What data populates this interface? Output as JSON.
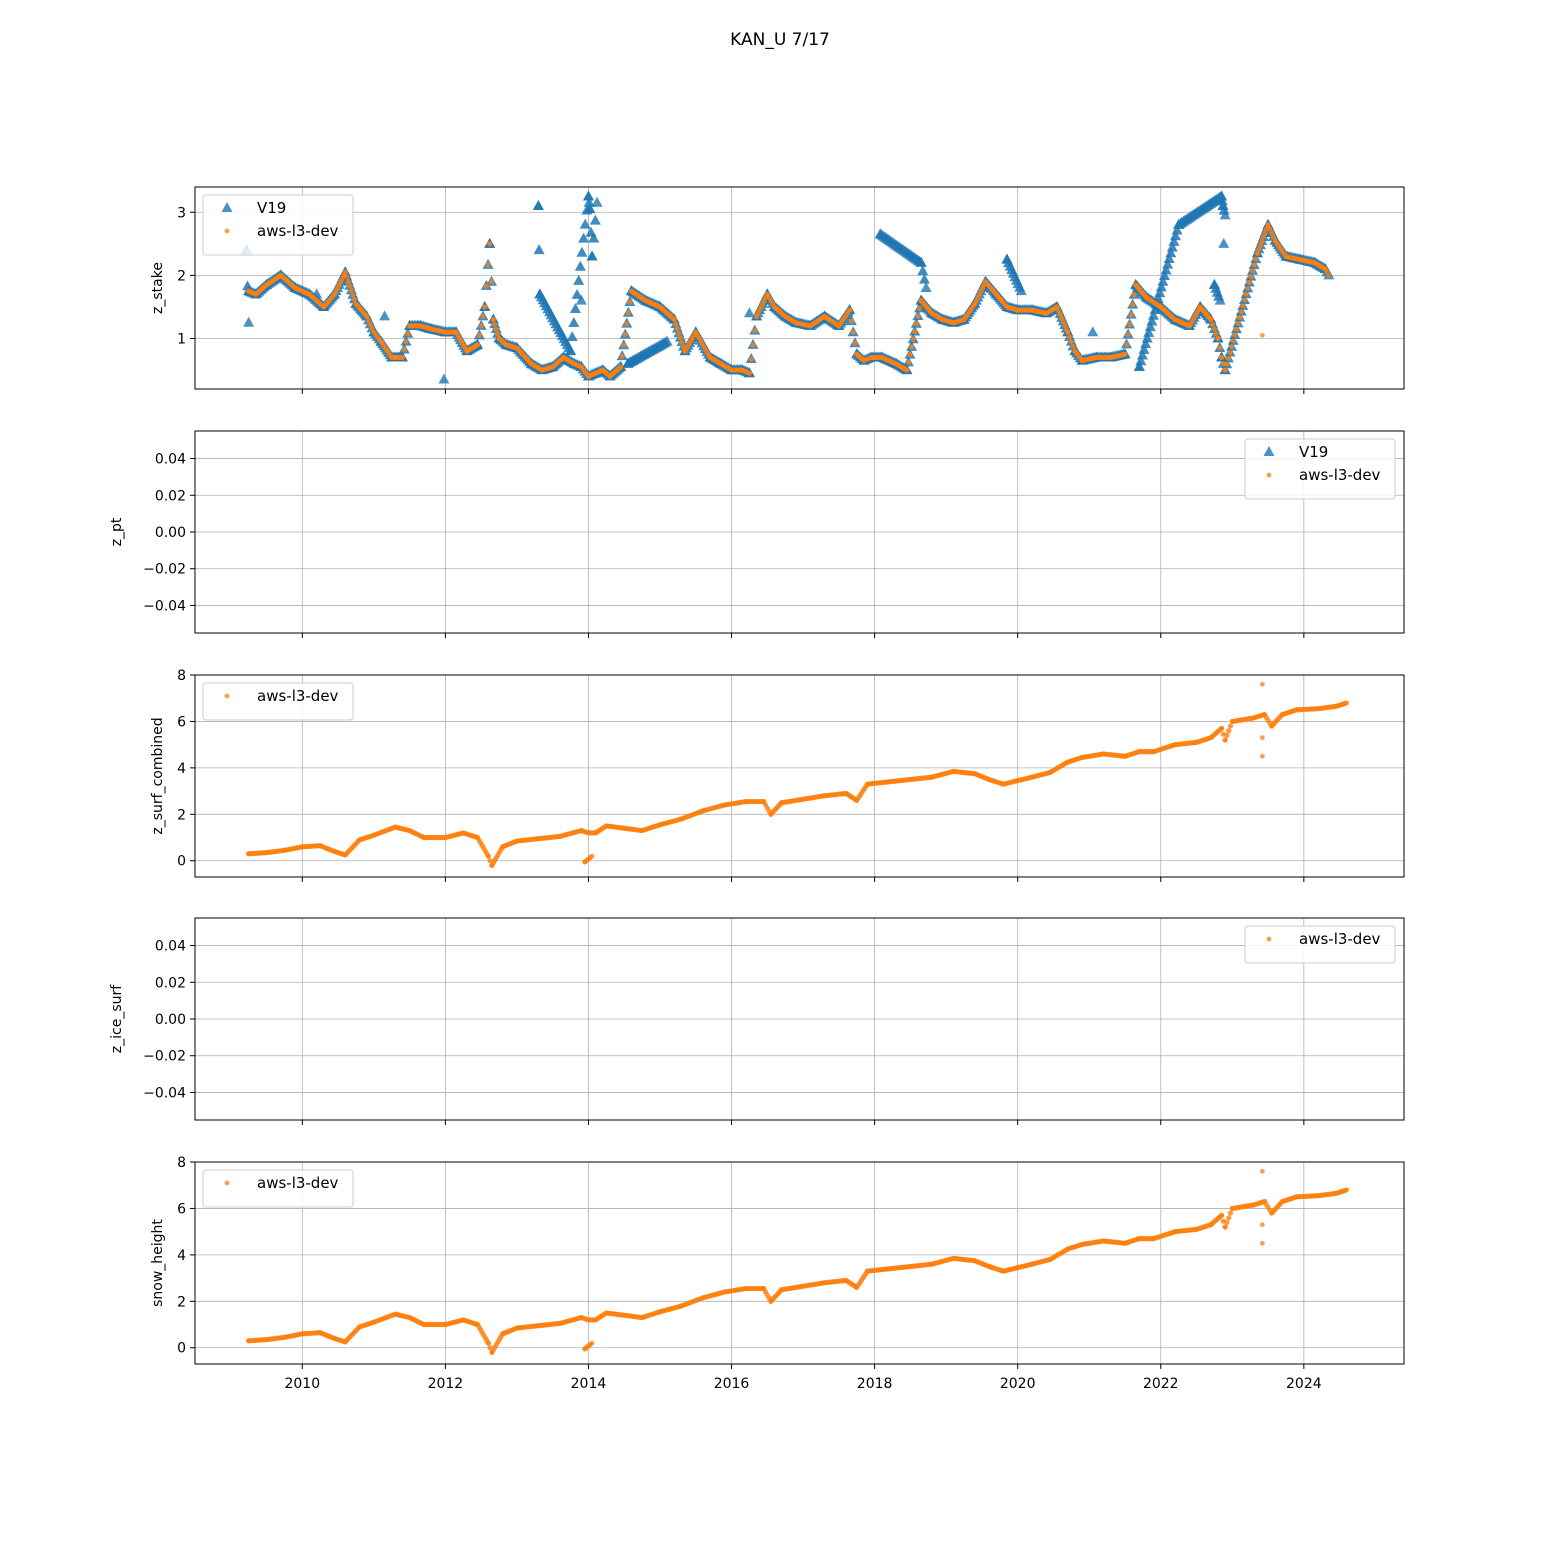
{
  "title": "KAN_U 7/17",
  "colors": {
    "v19": "#1f77b4",
    "aws": "#ff7f0e",
    "grid": "#b0b0b0"
  },
  "chart_data": [
    {
      "type": "scatter",
      "ylabel": "z_stake",
      "xlim": [
        2008.5,
        2025.4
      ],
      "ylim": [
        0.2,
        3.4
      ],
      "yticks": [
        1,
        2,
        3
      ],
      "grid": true,
      "legend_position": "upper-left",
      "series": [
        {
          "name": "V19",
          "marker": "triangle",
          "x": [
            2009.25,
            2009.35,
            2009.5,
            2009.7,
            2009.9,
            2010.1,
            2010.3,
            2010.45,
            2010.6,
            2010.75,
            2010.9,
            2011.0,
            2011.1,
            2011.25,
            2011.4,
            2011.5,
            2011.65,
            2011.8,
            2012.0,
            2012.15,
            2012.3,
            2012.45,
            2012.55,
            2012.62,
            2012.67,
            2012.75,
            2012.85,
            2013.0,
            2013.2,
            2013.35,
            2013.5,
            2013.65,
            2013.8,
            2013.9,
            2014.0,
            2014.1,
            2014.2,
            2014.3,
            2014.45,
            2014.6,
            2014.8,
            2015.0,
            2015.2,
            2015.35,
            2015.5,
            2015.7,
            2015.85,
            2016.0,
            2016.15,
            2016.25,
            2016.35,
            2016.5,
            2016.6,
            2016.75,
            2016.9,
            2017.1,
            2017.3,
            2017.5,
            2017.65,
            2017.75,
            2017.85,
            2017.95,
            2018.1,
            2018.3,
            2018.45,
            2018.65,
            2018.8,
            2018.95,
            2019.1,
            2019.25,
            2019.4,
            2019.55,
            2019.7,
            2019.85,
            2020.0,
            2020.2,
            2020.4,
            2020.55,
            2020.7,
            2020.8,
            2020.9,
            2021.1,
            2021.3,
            2021.5,
            2021.65,
            2021.8,
            2022.0,
            2022.2,
            2022.4,
            2022.55,
            2022.7,
            2022.8,
            2022.85,
            2022.9,
            2023.35,
            2023.5,
            2023.6,
            2023.75,
            2023.95,
            2024.15,
            2024.3,
            2024.35,
            2009.22,
            2009.25,
            2010.2,
            2011.15,
            2011.98,
            2013.3,
            2013.32,
            2013.75,
            2014.0,
            2014.02,
            2014.05,
            2014.12,
            2013.9,
            2014.55,
            2015.1,
            2016.25,
            2018.08,
            2018.65,
            2018.72,
            2019.85,
            2020.05,
            2021.05,
            2021.7,
            2022.25,
            2022.85,
            2022.87,
            2022.9,
            2022.88,
            2022.75,
            2022.83
          ],
          "y": [
            1.75,
            1.7,
            1.85,
            2.0,
            1.8,
            1.7,
            1.5,
            1.7,
            2.05,
            1.55,
            1.35,
            1.1,
            0.95,
            0.7,
            0.7,
            1.2,
            1.2,
            1.15,
            1.1,
            1.1,
            0.8,
            0.9,
            1.5,
            2.5,
            1.3,
            1.0,
            0.9,
            0.85,
            0.6,
            0.5,
            0.55,
            0.7,
            0.6,
            0.55,
            0.4,
            0.45,
            0.5,
            0.4,
            0.55,
            1.75,
            1.6,
            1.5,
            1.3,
            0.8,
            1.1,
            0.7,
            0.6,
            0.5,
            0.5,
            0.45,
            1.35,
            1.7,
            1.5,
            1.35,
            1.25,
            1.2,
            1.35,
            1.2,
            1.45,
            0.75,
            0.65,
            0.7,
            0.7,
            0.6,
            0.5,
            1.6,
            1.4,
            1.3,
            1.25,
            1.3,
            1.55,
            1.9,
            1.7,
            1.5,
            1.45,
            1.45,
            1.4,
            1.5,
            1.1,
            0.8,
            0.65,
            0.7,
            0.7,
            0.75,
            1.85,
            1.65,
            1.5,
            1.3,
            1.2,
            1.5,
            1.3,
            1.0,
            0.7,
            0.5,
            2.35,
            2.8,
            2.55,
            2.3,
            2.25,
            2.2,
            2.1,
            2.0,
            2.4,
            1.25,
            1.7,
            1.35,
            0.35,
            3.1,
            1.7,
            0.8,
            3.25,
            3.05,
            2.3,
            3.15,
            1.6,
            0.6,
            0.95,
            1.4,
            2.65,
            2.2,
            1.8,
            2.25,
            1.75,
            1.1,
            0.55,
            2.8,
            3.25,
            3.1,
            2.95,
            2.5,
            1.85,
            1.6
          ]
        },
        {
          "name": "aws-l3-dev",
          "marker": "dot",
          "x": [
            2009.25,
            2009.35,
            2009.5,
            2009.7,
            2009.9,
            2010.1,
            2010.3,
            2010.45,
            2010.6,
            2010.75,
            2010.9,
            2011.0,
            2011.1,
            2011.25,
            2011.4,
            2011.5,
            2011.65,
            2011.8,
            2012.0,
            2012.15,
            2012.3,
            2012.45,
            2012.55,
            2012.62,
            2012.67,
            2012.75,
            2012.85,
            2013.0,
            2013.2,
            2013.35,
            2013.5,
            2013.65,
            2013.8,
            2013.9,
            2014.0,
            2014.1,
            2014.2,
            2014.3,
            2014.45,
            2014.6,
            2014.8,
            2015.0,
            2015.2,
            2015.35,
            2015.5,
            2015.7,
            2015.85,
            2016.0,
            2016.15,
            2016.25,
            2016.35,
            2016.5,
            2016.6,
            2016.75,
            2016.9,
            2017.1,
            2017.3,
            2017.5,
            2017.65,
            2017.75,
            2017.85,
            2017.95,
            2018.1,
            2018.3,
            2018.45,
            2018.65,
            2018.8,
            2018.95,
            2019.1,
            2019.25,
            2019.4,
            2019.55,
            2019.7,
            2019.85,
            2020.0,
            2020.2,
            2020.4,
            2020.55,
            2020.7,
            2020.8,
            2020.9,
            2021.1,
            2021.3,
            2021.5,
            2021.65,
            2021.8,
            2022.0,
            2022.2,
            2022.4,
            2022.55,
            2022.7,
            2022.8,
            2022.85,
            2022.9,
            2023.35,
            2023.5,
            2023.6,
            2023.75,
            2023.95,
            2024.15,
            2024.3,
            2024.35,
            2023.42
          ],
          "y": [
            1.75,
            1.7,
            1.85,
            2.0,
            1.8,
            1.7,
            1.5,
            1.7,
            2.05,
            1.55,
            1.35,
            1.1,
            0.95,
            0.7,
            0.7,
            1.2,
            1.2,
            1.15,
            1.1,
            1.1,
            0.8,
            0.9,
            1.5,
            2.5,
            1.3,
            1.0,
            0.9,
            0.85,
            0.6,
            0.5,
            0.55,
            0.7,
            0.6,
            0.55,
            0.4,
            0.45,
            0.5,
            0.4,
            0.55,
            1.75,
            1.6,
            1.5,
            1.3,
            0.8,
            1.1,
            0.7,
            0.6,
            0.5,
            0.5,
            0.45,
            1.35,
            1.7,
            1.5,
            1.35,
            1.25,
            1.2,
            1.35,
            1.2,
            1.45,
            0.75,
            0.65,
            0.7,
            0.7,
            0.6,
            0.5,
            1.6,
            1.4,
            1.3,
            1.25,
            1.3,
            1.55,
            1.9,
            1.7,
            1.5,
            1.45,
            1.45,
            1.4,
            1.5,
            1.1,
            0.8,
            0.65,
            0.7,
            0.7,
            0.75,
            1.85,
            1.65,
            1.5,
            1.3,
            1.2,
            1.5,
            1.3,
            1.0,
            0.7,
            0.5,
            2.35,
            2.8,
            2.55,
            2.3,
            2.25,
            2.2,
            2.1,
            2.0,
            1.05
          ]
        }
      ]
    },
    {
      "type": "scatter",
      "ylabel": "z_pt",
      "xlim": [
        2008.5,
        2025.4
      ],
      "ylim": [
        -0.055,
        0.055
      ],
      "yticks": [
        -0.04,
        -0.02,
        0.0,
        0.02,
        0.04
      ],
      "ytick_labels": [
        "−0.04",
        "−0.02",
        "0.00",
        "0.02",
        "0.04"
      ],
      "grid": true,
      "legend_position": "upper-right",
      "series": [
        {
          "name": "V19",
          "marker": "triangle",
          "x": [],
          "y": []
        },
        {
          "name": "aws-l3-dev",
          "marker": "dot",
          "x": [],
          "y": []
        }
      ]
    },
    {
      "type": "scatter",
      "ylabel": "z_surf_combined",
      "xlim": [
        2008.5,
        2025.4
      ],
      "ylim": [
        -0.7,
        8.0
      ],
      "yticks": [
        0,
        2,
        4,
        6,
        8
      ],
      "grid": true,
      "legend_position": "upper-left",
      "series": [
        {
          "name": "aws-l3-dev",
          "marker": "dot",
          "x": [
            2009.25,
            2009.5,
            2009.75,
            2010.0,
            2010.25,
            2010.45,
            2010.6,
            2010.8,
            2011.0,
            2011.3,
            2011.5,
            2011.7,
            2012.0,
            2012.25,
            2012.45,
            2012.6,
            2012.65,
            2012.8,
            2013.0,
            2013.3,
            2013.6,
            2013.9,
            2014.0,
            2014.1,
            2014.25,
            2014.5,
            2014.75,
            2015.0,
            2015.3,
            2015.6,
            2015.9,
            2016.2,
            2016.45,
            2016.55,
            2016.7,
            2017.0,
            2017.3,
            2017.6,
            2017.75,
            2017.9,
            2018.2,
            2018.5,
            2018.8,
            2019.1,
            2019.4,
            2019.6,
            2019.8,
            2020.0,
            2020.2,
            2020.45,
            2020.7,
            2020.9,
            2021.2,
            2021.5,
            2021.7,
            2021.9,
            2022.2,
            2022.5,
            2022.7,
            2022.85,
            2022.9,
            2023.0,
            2023.3,
            2023.45,
            2023.55,
            2023.7,
            2023.9,
            2024.2,
            2024.45,
            2024.6,
            2023.42,
            2023.42,
            2023.42,
            2013.95,
            2014.05
          ],
          "y": [
            0.3,
            0.35,
            0.45,
            0.6,
            0.65,
            0.4,
            0.25,
            0.9,
            1.1,
            1.45,
            1.3,
            1.0,
            1.0,
            1.2,
            1.0,
            0.2,
            -0.2,
            0.6,
            0.85,
            0.95,
            1.05,
            1.3,
            1.2,
            1.2,
            1.5,
            1.4,
            1.3,
            1.55,
            1.8,
            2.15,
            2.4,
            2.55,
            2.55,
            2.0,
            2.5,
            2.65,
            2.8,
            2.9,
            2.6,
            3.3,
            3.4,
            3.5,
            3.6,
            3.85,
            3.75,
            3.5,
            3.3,
            3.45,
            3.6,
            3.8,
            4.25,
            4.45,
            4.6,
            4.5,
            4.7,
            4.7,
            5.0,
            5.1,
            5.3,
            5.7,
            5.2,
            6.0,
            6.15,
            6.3,
            5.8,
            6.3,
            6.5,
            6.55,
            6.65,
            6.8,
            7.6,
            4.5,
            5.3,
            -0.05,
            0.2
          ]
        }
      ]
    },
    {
      "type": "scatter",
      "ylabel": "z_ice_surf",
      "xlim": [
        2008.5,
        2025.4
      ],
      "ylim": [
        -0.055,
        0.055
      ],
      "yticks": [
        -0.04,
        -0.02,
        0.0,
        0.02,
        0.04
      ],
      "ytick_labels": [
        "−0.04",
        "−0.02",
        "0.00",
        "0.02",
        "0.04"
      ],
      "grid": true,
      "legend_position": "upper-right",
      "series": [
        {
          "name": "aws-l3-dev",
          "marker": "dot",
          "x": [],
          "y": []
        }
      ]
    },
    {
      "type": "scatter",
      "ylabel": "snow_height",
      "xlim": [
        2008.5,
        2025.4
      ],
      "ylim": [
        -0.7,
        8.0
      ],
      "yticks": [
        0,
        2,
        4,
        6,
        8
      ],
      "xticks": [
        2010,
        2012,
        2014,
        2016,
        2018,
        2020,
        2022,
        2024
      ],
      "grid": true,
      "legend_position": "upper-left",
      "series": [
        {
          "name": "aws-l3-dev",
          "marker": "dot",
          "x": [
            2009.25,
            2009.5,
            2009.75,
            2010.0,
            2010.25,
            2010.45,
            2010.6,
            2010.8,
            2011.0,
            2011.3,
            2011.5,
            2011.7,
            2012.0,
            2012.25,
            2012.45,
            2012.6,
            2012.65,
            2012.8,
            2013.0,
            2013.3,
            2013.6,
            2013.9,
            2014.0,
            2014.1,
            2014.25,
            2014.5,
            2014.75,
            2015.0,
            2015.3,
            2015.6,
            2015.9,
            2016.2,
            2016.45,
            2016.55,
            2016.7,
            2017.0,
            2017.3,
            2017.6,
            2017.75,
            2017.9,
            2018.2,
            2018.5,
            2018.8,
            2019.1,
            2019.4,
            2019.6,
            2019.8,
            2020.0,
            2020.2,
            2020.45,
            2020.7,
            2020.9,
            2021.2,
            2021.5,
            2021.7,
            2021.9,
            2022.2,
            2022.5,
            2022.7,
            2022.85,
            2022.9,
            2023.0,
            2023.3,
            2023.45,
            2023.55,
            2023.7,
            2023.9,
            2024.2,
            2024.45,
            2024.6,
            2023.42,
            2023.42,
            2023.42,
            2013.95,
            2014.05
          ],
          "y": [
            0.3,
            0.35,
            0.45,
            0.6,
            0.65,
            0.4,
            0.25,
            0.9,
            1.1,
            1.45,
            1.3,
            1.0,
            1.0,
            1.2,
            1.0,
            0.2,
            -0.2,
            0.6,
            0.85,
            0.95,
            1.05,
            1.3,
            1.2,
            1.2,
            1.5,
            1.4,
            1.3,
            1.55,
            1.8,
            2.15,
            2.4,
            2.55,
            2.55,
            2.0,
            2.5,
            2.65,
            2.8,
            2.9,
            2.6,
            3.3,
            3.4,
            3.5,
            3.6,
            3.85,
            3.75,
            3.5,
            3.3,
            3.45,
            3.6,
            3.8,
            4.25,
            4.45,
            4.6,
            4.5,
            4.7,
            4.7,
            5.0,
            5.1,
            5.3,
            5.7,
            5.2,
            6.0,
            6.15,
            6.3,
            5.8,
            6.3,
            6.5,
            6.55,
            6.65,
            6.8,
            7.6,
            4.5,
            5.3,
            -0.05,
            0.2
          ]
        }
      ]
    }
  ]
}
